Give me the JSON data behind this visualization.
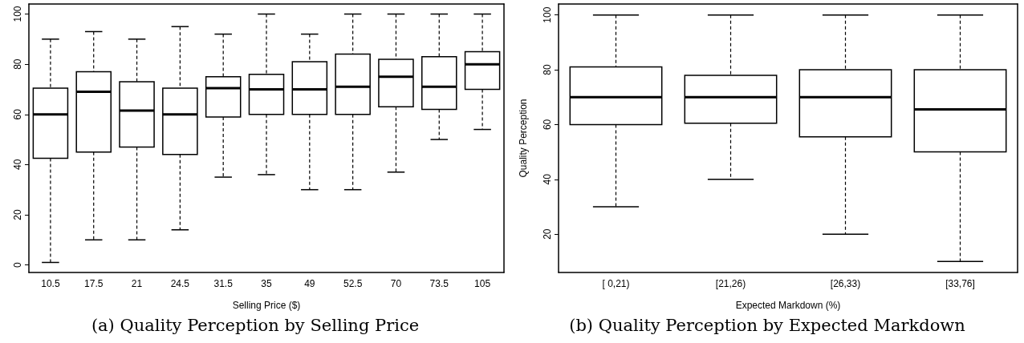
{
  "chart_data": [
    {
      "type": "box",
      "xlabel": "Selling Price ($)",
      "categories": [
        "10.5",
        "17.5",
        "21",
        "24.5",
        "31.5",
        "35",
        "49",
        "52.5",
        "70",
        "73.5",
        "105"
      ],
      "boxes": [
        {
          "low": 1,
          "q1": 42.5,
          "median": 60,
          "q3": 70.5,
          "high": 90
        },
        {
          "low": 10,
          "q1": 45,
          "median": 69,
          "q3": 77,
          "high": 93
        },
        {
          "low": 10,
          "q1": 47,
          "median": 61.5,
          "q3": 73,
          "high": 90
        },
        {
          "low": 14,
          "q1": 44,
          "median": 60,
          "q3": 70.5,
          "high": 95
        },
        {
          "low": 35,
          "q1": 59,
          "median": 70.5,
          "q3": 75,
          "high": 92
        },
        {
          "low": 36,
          "q1": 60,
          "median": 70,
          "q3": 76,
          "high": 100
        },
        {
          "low": 30,
          "q1": 60,
          "median": 70,
          "q3": 81,
          "high": 92
        },
        {
          "low": 30,
          "q1": 60,
          "median": 71,
          "q3": 84,
          "high": 100
        },
        {
          "low": 37,
          "q1": 63,
          "median": 75,
          "q3": 82,
          "high": 100
        },
        {
          "low": 50,
          "q1": 62,
          "median": 71,
          "q3": 83,
          "high": 100
        },
        {
          "low": 54,
          "q1": 70,
          "median": 80,
          "q3": 85,
          "high": 100
        }
      ],
      "ylim": [
        -3,
        104
      ],
      "yticks": [
        0,
        20,
        40,
        60,
        80,
        100
      ],
      "annotations": [
        "(a) Quality Perception by Selling Price"
      ]
    },
    {
      "type": "box",
      "xlabel": "Expected Markdown (%)",
      "ylabel": "Quality Perception",
      "categories": [
        "[ 0,21)",
        "[21,26)",
        "[26,33)",
        "[33,76]"
      ],
      "boxes": [
        {
          "low": 30,
          "q1": 60,
          "median": 70,
          "q3": 81,
          "high": 100
        },
        {
          "low": 40,
          "q1": 60.5,
          "median": 70,
          "q3": 78,
          "high": 100
        },
        {
          "low": 20,
          "q1": 55.5,
          "median": 70,
          "q3": 80,
          "high": 100
        },
        {
          "low": 10,
          "q1": 50,
          "median": 65.5,
          "q3": 80,
          "high": 100
        }
      ],
      "ylim": [
        6,
        104
      ],
      "yticks": [
        20,
        40,
        60,
        80,
        100
      ],
      "annotations": [
        "(b) Quality Perception by Expected Markdown"
      ]
    }
  ]
}
